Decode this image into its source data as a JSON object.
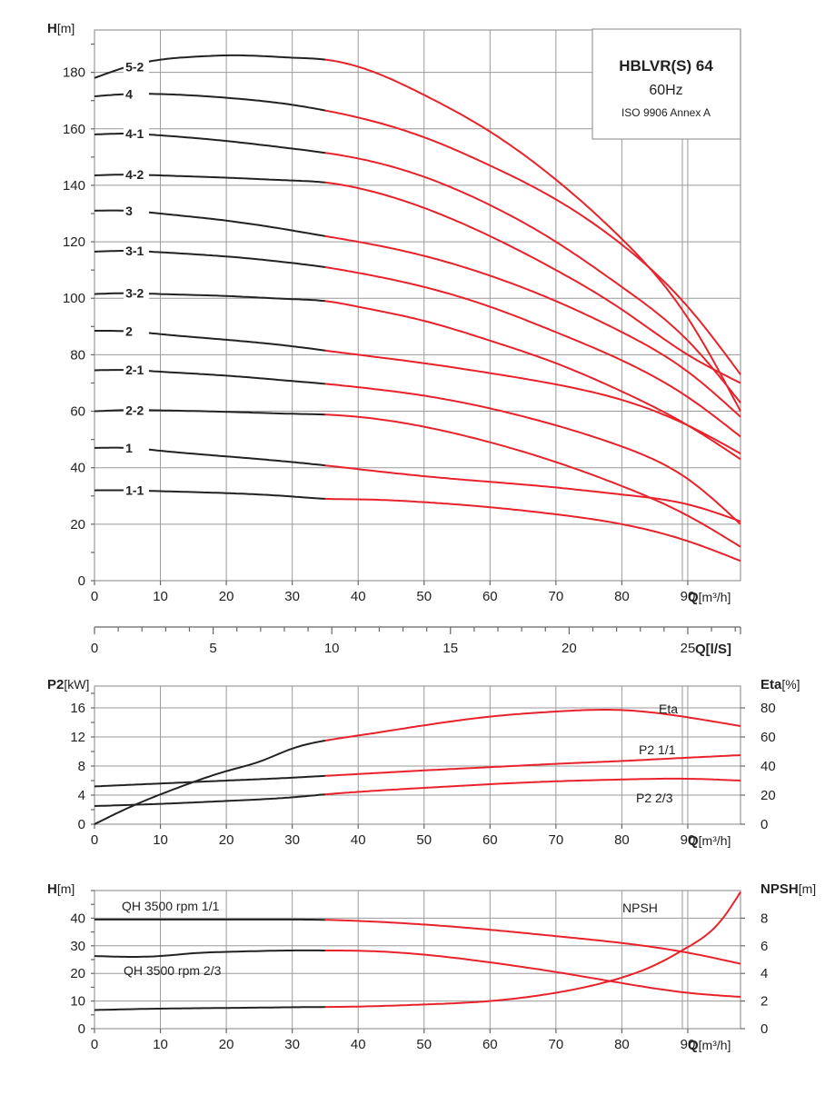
{
  "title_box": {
    "line1": "HBLVR(S) 64",
    "line2": "60Hz",
    "line3": "ISO 9906 Annex A"
  },
  "colors": {
    "operating_range": "#e8222a",
    "outside_range": "#222222",
    "grid": "#9a9a9a"
  },
  "chart_data": [
    {
      "id": "head",
      "type": "line",
      "y_label_bold": "H",
      "y_label_unit": "[m]",
      "x_label_bold": "Q",
      "x_label_unit": "[m³/h]",
      "xlim": [
        0,
        98
      ],
      "ylim": [
        0,
        195
      ],
      "x_ticks": [
        0,
        10,
        20,
        30,
        40,
        50,
        60,
        70,
        80,
        90
      ],
      "x_tick_labels": [
        "0",
        "10",
        "20",
        "30",
        "40",
        "50",
        "60",
        "70",
        "80",
        "90"
      ],
      "y_ticks": [
        0,
        20,
        40,
        60,
        80,
        100,
        120,
        140,
        160,
        180
      ],
      "y_tick_labels": [
        "0",
        "20",
        "40",
        "60",
        "80",
        "100",
        "120",
        "140",
        "160",
        "180"
      ],
      "secondary_x_axis": {
        "label": "Q[l/S]",
        "ticks": [
          0,
          5,
          10,
          15,
          20,
          25
        ],
        "tick_labels": [
          "0",
          "5",
          "10",
          "15",
          "20",
          "25"
        ]
      },
      "red_from_x": 35,
      "series": [
        {
          "name": "5-2",
          "x": [
            0,
            5,
            10,
            15,
            20,
            25,
            30,
            35,
            40,
            50,
            60,
            70,
            80,
            90,
            98
          ],
          "y": [
            178,
            182,
            184.5,
            185.5,
            186,
            185.8,
            185.2,
            184.5,
            182,
            172,
            159,
            142,
            121,
            93,
            60
          ]
        },
        {
          "name": "4",
          "x": [
            0,
            5,
            10,
            20,
            30,
            35,
            40,
            50,
            60,
            70,
            80,
            90,
            98
          ],
          "y": [
            171.5,
            172.3,
            172.3,
            171,
            168.5,
            166.5,
            164,
            157,
            147,
            135,
            119,
            97,
            73
          ]
        },
        {
          "name": "4-1",
          "x": [
            0,
            5,
            10,
            20,
            30,
            35,
            40,
            50,
            60,
            70,
            80,
            90,
            98
          ],
          "y": [
            158,
            158.3,
            157.7,
            155.7,
            153,
            151.5,
            149.5,
            143,
            133,
            120,
            104,
            85,
            63
          ]
        },
        {
          "name": "4-2",
          "x": [
            0,
            5,
            10,
            20,
            30,
            35,
            40,
            50,
            60,
            70,
            80,
            90,
            98
          ],
          "y": [
            143.5,
            143.8,
            143.5,
            142.7,
            141.7,
            141,
            139,
            132,
            122,
            110,
            96,
            80,
            70
          ]
        },
        {
          "name": "3",
          "x": [
            0,
            5,
            10,
            20,
            30,
            35,
            40,
            50,
            60,
            70,
            80,
            90,
            98
          ],
          "y": [
            131,
            131,
            130,
            127.5,
            124,
            122,
            120,
            115,
            108,
            99,
            88,
            74,
            58
          ]
        },
        {
          "name": "3-1",
          "x": [
            0,
            5,
            10,
            20,
            30,
            35,
            40,
            50,
            60,
            70,
            80,
            90,
            98
          ],
          "y": [
            116.5,
            116.8,
            116.3,
            114.8,
            112.5,
            111,
            109,
            104,
            97,
            88,
            78,
            65,
            51
          ]
        },
        {
          "name": "3-2",
          "x": [
            0,
            5,
            10,
            20,
            30,
            35,
            40,
            50,
            60,
            70,
            80,
            90,
            98
          ],
          "y": [
            101.5,
            101.8,
            101.5,
            100.8,
            99.7,
            99,
            97,
            92,
            85,
            77,
            67,
            55,
            43
          ]
        },
        {
          "name": "2",
          "x": [
            0,
            5,
            10,
            20,
            30,
            35,
            40,
            50,
            60,
            70,
            80,
            90,
            98
          ],
          "y": [
            88.5,
            88.3,
            87.3,
            85.3,
            83,
            81.5,
            80,
            77,
            73.5,
            69.5,
            64,
            55,
            45
          ]
        },
        {
          "name": "2-1",
          "x": [
            0,
            5,
            10,
            20,
            30,
            35,
            40,
            50,
            60,
            70,
            80,
            90,
            98
          ],
          "y": [
            74.5,
            74.6,
            74,
            72.6,
            70.7,
            69.7,
            68.5,
            65.5,
            61,
            55,
            47.5,
            36,
            20
          ]
        },
        {
          "name": "2-2",
          "x": [
            0,
            5,
            10,
            20,
            30,
            35,
            40,
            50,
            60,
            70,
            80,
            90,
            98
          ],
          "y": [
            60,
            60.4,
            60.3,
            59.8,
            59.1,
            58.8,
            58,
            54.5,
            49,
            42,
            33.5,
            23,
            12
          ]
        },
        {
          "name": "1",
          "x": [
            0,
            5,
            10,
            20,
            30,
            35,
            40,
            50,
            60,
            70,
            80,
            90,
            98
          ],
          "y": [
            47,
            47,
            46,
            44,
            42,
            40.8,
            39.5,
            37,
            35,
            33,
            30.5,
            27,
            21
          ]
        },
        {
          "name": "1-1",
          "x": [
            0,
            5,
            10,
            20,
            30,
            35,
            40,
            50,
            60,
            70,
            80,
            90,
            98
          ],
          "y": [
            32,
            32,
            31.7,
            31,
            29.8,
            29,
            28.8,
            27.8,
            26,
            23.5,
            20,
            14,
            7
          ]
        }
      ]
    },
    {
      "id": "power",
      "type": "line",
      "y_label_bold": "P2",
      "y_label_unit": "[kW]",
      "y2_label_bold": "Eta",
      "y2_label_unit": "[%]",
      "x_label_bold": "Q",
      "x_label_unit": "[m³/h]",
      "xlim": [
        0,
        98
      ],
      "ylim": [
        0,
        19
      ],
      "y2lim": [
        0,
        95
      ],
      "x_ticks": [
        0,
        10,
        20,
        30,
        40,
        50,
        60,
        70,
        80,
        90
      ],
      "x_tick_labels": [
        "0",
        "10",
        "20",
        "30",
        "40",
        "50",
        "60",
        "70",
        "80",
        "90"
      ],
      "y_ticks": [
        0,
        4,
        8,
        12,
        16
      ],
      "y_tick_labels": [
        "0",
        "4",
        "8",
        "12",
        "16"
      ],
      "y2_ticks": [
        0,
        20,
        40,
        60,
        80
      ],
      "y2_tick_labels": [
        "0",
        "20",
        "40",
        "60",
        "80"
      ],
      "red_from_x": 35,
      "series": [
        {
          "name": "Eta",
          "axis": "y2",
          "x": [
            0,
            5,
            10,
            15,
            20,
            25,
            30,
            35,
            40,
            50,
            60,
            70,
            80,
            90,
            98
          ],
          "y": [
            0,
            11,
            20.5,
            29,
            36.5,
            43,
            52,
            57.5,
            61,
            68,
            74,
            77.5,
            78.5,
            73.5,
            67.5
          ]
        },
        {
          "name": "P2 1/1",
          "axis": "y",
          "x": [
            0,
            10,
            20,
            30,
            35,
            40,
            50,
            60,
            70,
            80,
            90,
            98
          ],
          "y": [
            5.2,
            5.6,
            6,
            6.4,
            6.65,
            6.9,
            7.4,
            7.85,
            8.3,
            8.7,
            9.15,
            9.5
          ]
        },
        {
          "name": "P2 2/3",
          "axis": "y",
          "x": [
            0,
            10,
            20,
            30,
            35,
            40,
            50,
            60,
            70,
            80,
            90,
            98
          ],
          "y": [
            2.5,
            2.8,
            3.2,
            3.7,
            4.1,
            4.45,
            5,
            5.5,
            5.9,
            6.15,
            6.25,
            6.0
          ]
        }
      ]
    },
    {
      "id": "npsh",
      "type": "line",
      "y_label_bold": "H",
      "y_label_unit": "[m]",
      "y2_label_bold": "NPSH",
      "y2_label_unit": "[m]",
      "x_label_bold": "Q",
      "x_label_unit": "[m³/h]",
      "xlim": [
        0,
        98
      ],
      "ylim": [
        0,
        50
      ],
      "y2lim": [
        0,
        10
      ],
      "x_ticks": [
        0,
        10,
        20,
        30,
        40,
        50,
        60,
        70,
        80,
        90
      ],
      "x_tick_labels": [
        "0",
        "10",
        "20",
        "30",
        "40",
        "50",
        "60",
        "70",
        "80",
        "90"
      ],
      "y_ticks": [
        0,
        10,
        20,
        30,
        40
      ],
      "y_tick_labels": [
        "0",
        "10",
        "20",
        "30",
        "40"
      ],
      "y2_ticks": [
        0,
        2,
        4,
        6,
        8
      ],
      "y2_tick_labels": [
        "0",
        "2",
        "4",
        "6",
        "8"
      ],
      "red_from_x": 35,
      "series": [
        {
          "name": "QH 3500 rpm 1/1",
          "axis": "y",
          "x": [
            0,
            10,
            20,
            30,
            35,
            40,
            50,
            60,
            70,
            80,
            90,
            98
          ],
          "y": [
            39.5,
            39.5,
            39.5,
            39.5,
            39.4,
            39,
            37.7,
            35.8,
            33.5,
            31,
            27.5,
            23.5
          ]
        },
        {
          "name": "QH 3500 rpm 2/3",
          "axis": "y",
          "x": [
            0,
            5,
            10,
            15,
            20,
            25,
            30,
            35,
            40,
            50,
            60,
            70,
            80,
            90,
            98
          ],
          "y": [
            26.3,
            26,
            26.3,
            27.3,
            27.8,
            28.1,
            28.3,
            28.3,
            28.2,
            26.8,
            24,
            20.5,
            16.5,
            13,
            11.5
          ]
        },
        {
          "name": "NPSH",
          "axis": "y2",
          "x": [
            0,
            10,
            20,
            30,
            35,
            40,
            50,
            60,
            70,
            80,
            85,
            90,
            95,
            98
          ],
          "y": [
            1.35,
            1.45,
            1.5,
            1.55,
            1.57,
            1.6,
            1.75,
            2.0,
            2.6,
            3.7,
            4.6,
            5.9,
            7.8,
            9.9
          ]
        }
      ]
    }
  ]
}
